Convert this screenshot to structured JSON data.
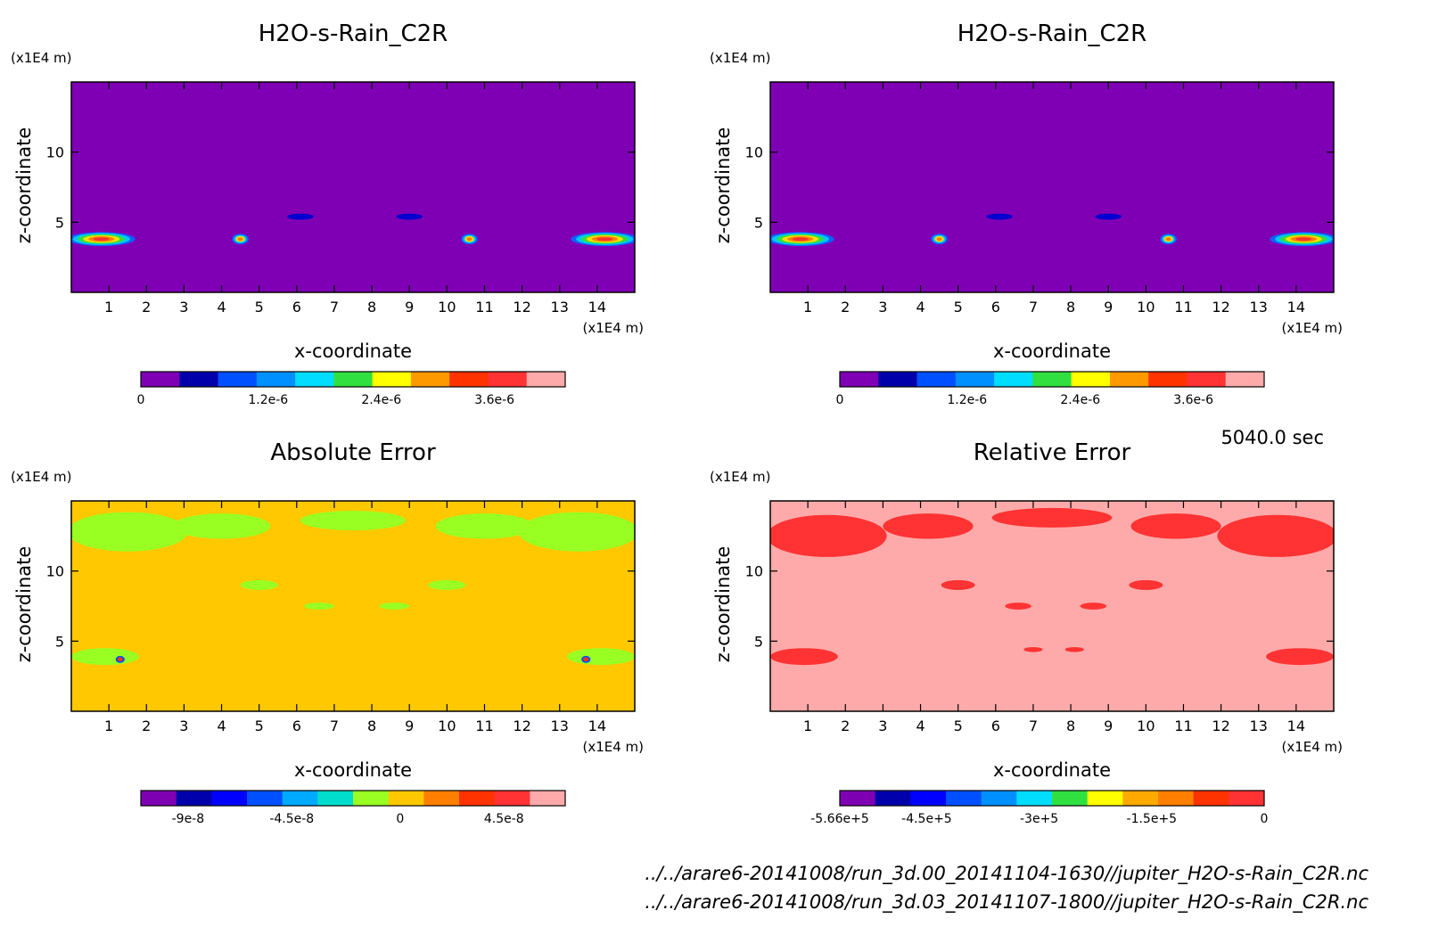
{
  "time_label": "5040.0 sec",
  "files": [
    "../../arare6-20141008/run_3d.00_20141104-1630//jupiter_H2O-s-Rain_C2R.nc",
    "../../arare6-20141008/run_3d.03_20141107-1800//jupiter_H2O-s-Rain_C2R.nc"
  ],
  "chart_data": [
    {
      "type": "heatmap",
      "title": "H2O-s-Rain_C2R",
      "xlabel": "x-coordinate",
      "ylabel": "z-coordinate",
      "x_unit": "(x1E4 m)",
      "y_unit": "(x1E4 m)",
      "xlim": [
        0,
        15
      ],
      "ylim": [
        0,
        15
      ],
      "x_ticks": [
        1,
        2,
        3,
        4,
        5,
        6,
        7,
        8,
        9,
        10,
        11,
        12,
        13,
        14
      ],
      "y_ticks": [
        5,
        10
      ],
      "background_color": "#7f00b4",
      "blobs": [
        {
          "x": 0.8,
          "z": 3.8,
          "rx": 0.9,
          "rz": 0.5,
          "levels": [
            "#1060ff",
            "#00c8ff",
            "#30e040",
            "#ffe000",
            "#ff8000",
            "#ff3030"
          ]
        },
        {
          "x": 14.2,
          "z": 3.8,
          "rx": 0.9,
          "rz": 0.5,
          "levels": [
            "#1060ff",
            "#00c8ff",
            "#30e040",
            "#ffe000",
            "#ff8000",
            "#ff3030"
          ]
        },
        {
          "x": 4.5,
          "z": 3.8,
          "rx": 0.22,
          "rz": 0.38,
          "levels": [
            "#1060ff",
            "#00c8ff",
            "#ffe000",
            "#ff8000"
          ]
        },
        {
          "x": 10.6,
          "z": 3.8,
          "rx": 0.22,
          "rz": 0.38,
          "levels": [
            "#1060ff",
            "#00c8ff",
            "#ffe000",
            "#ff8000"
          ]
        },
        {
          "x": 6.1,
          "z": 5.4,
          "rx": 0.35,
          "rz": 0.22,
          "levels": [
            "#0000d0"
          ]
        },
        {
          "x": 9.0,
          "z": 5.4,
          "rx": 0.35,
          "rz": 0.22,
          "levels": [
            "#0000d0"
          ]
        }
      ],
      "colorbar": {
        "colors": [
          "#7f00b4",
          "#0000aa",
          "#0050ff",
          "#0090ff",
          "#00ddff",
          "#30e040",
          "#ffff00",
          "#ff9900",
          "#ff3300",
          "#ff3333",
          "#ffaaaa"
        ],
        "labels": [
          {
            "pos": 0.0,
            "text": "0"
          },
          {
            "pos": 0.3,
            "text": "1.2e-6"
          },
          {
            "pos": 0.5667,
            "text": "2.4e-6"
          },
          {
            "pos": 0.8333,
            "text": "3.6e-6"
          }
        ]
      }
    },
    {
      "type": "heatmap",
      "title": "H2O-s-Rain_C2R",
      "xlabel": "x-coordinate",
      "ylabel": "z-coordinate",
      "x_unit": "(x1E4 m)",
      "y_unit": "(x1E4 m)",
      "xlim": [
        0,
        15
      ],
      "ylim": [
        0,
        15
      ],
      "x_ticks": [
        1,
        2,
        3,
        4,
        5,
        6,
        7,
        8,
        9,
        10,
        11,
        12,
        13,
        14
      ],
      "y_ticks": [
        5,
        10
      ],
      "background_color": "#7f00b4",
      "blobs": [
        {
          "x": 0.8,
          "z": 3.8,
          "rx": 0.9,
          "rz": 0.5,
          "levels": [
            "#1060ff",
            "#00c8ff",
            "#30e040",
            "#ffe000",
            "#ff8000",
            "#ff3030"
          ]
        },
        {
          "x": 14.2,
          "z": 3.8,
          "rx": 0.9,
          "rz": 0.5,
          "levels": [
            "#1060ff",
            "#00c8ff",
            "#30e040",
            "#ffe000",
            "#ff8000",
            "#ff3030"
          ]
        },
        {
          "x": 4.5,
          "z": 3.8,
          "rx": 0.22,
          "rz": 0.38,
          "levels": [
            "#1060ff",
            "#00c8ff",
            "#ffe000",
            "#ff8000"
          ]
        },
        {
          "x": 10.6,
          "z": 3.8,
          "rx": 0.22,
          "rz": 0.38,
          "levels": [
            "#1060ff",
            "#00c8ff",
            "#ffe000",
            "#ff8000"
          ]
        },
        {
          "x": 6.1,
          "z": 5.4,
          "rx": 0.35,
          "rz": 0.22,
          "levels": [
            "#0000d0"
          ]
        },
        {
          "x": 9.0,
          "z": 5.4,
          "rx": 0.35,
          "rz": 0.22,
          "levels": [
            "#0000d0"
          ]
        }
      ],
      "colorbar": {
        "colors": [
          "#7f00b4",
          "#0000aa",
          "#0050ff",
          "#0090ff",
          "#00ddff",
          "#30e040",
          "#ffff00",
          "#ff9900",
          "#ff3300",
          "#ff3333",
          "#ffaaaa"
        ],
        "labels": [
          {
            "pos": 0.0,
            "text": "0"
          },
          {
            "pos": 0.3,
            "text": "1.2e-6"
          },
          {
            "pos": 0.5667,
            "text": "2.4e-6"
          },
          {
            "pos": 0.8333,
            "text": "3.6e-6"
          }
        ]
      }
    },
    {
      "type": "heatmap",
      "title": "Absolute Error",
      "xlabel": "x-coordinate",
      "ylabel": "z-coordinate",
      "x_unit": "(x1E4 m)",
      "y_unit": "(x1E4 m)",
      "xlim": [
        0,
        15
      ],
      "ylim": [
        0,
        15
      ],
      "x_ticks": [
        1,
        2,
        3,
        4,
        5,
        6,
        7,
        8,
        9,
        10,
        11,
        12,
        13,
        14
      ],
      "y_ticks": [
        5,
        10
      ],
      "background_color": "#ffc800",
      "blobs": [
        {
          "x": 1.5,
          "z": 12.8,
          "rx": 1.6,
          "rz": 1.4,
          "levels": [
            "#99ff22"
          ]
        },
        {
          "x": 13.5,
          "z": 12.8,
          "rx": 1.6,
          "rz": 1.4,
          "levels": [
            "#99ff22"
          ]
        },
        {
          "x": 4.0,
          "z": 13.2,
          "rx": 1.3,
          "rz": 0.9,
          "levels": [
            "#99ff22"
          ]
        },
        {
          "x": 11.0,
          "z": 13.2,
          "rx": 1.3,
          "rz": 0.9,
          "levels": [
            "#99ff22"
          ]
        },
        {
          "x": 7.5,
          "z": 13.6,
          "rx": 1.4,
          "rz": 0.7,
          "levels": [
            "#99ff22"
          ]
        },
        {
          "x": 5.0,
          "z": 9.0,
          "rx": 0.5,
          "rz": 0.35,
          "levels": [
            "#99ff22"
          ]
        },
        {
          "x": 10.0,
          "z": 9.0,
          "rx": 0.5,
          "rz": 0.35,
          "levels": [
            "#99ff22"
          ]
        },
        {
          "x": 6.6,
          "z": 7.5,
          "rx": 0.4,
          "rz": 0.25,
          "levels": [
            "#99ff22"
          ]
        },
        {
          "x": 8.6,
          "z": 7.5,
          "rx": 0.4,
          "rz": 0.25,
          "levels": [
            "#99ff22"
          ]
        },
        {
          "x": 0.9,
          "z": 3.9,
          "rx": 0.9,
          "rz": 0.6,
          "levels": [
            "#99ff22"
          ]
        },
        {
          "x": 14.1,
          "z": 3.9,
          "rx": 0.9,
          "rz": 0.6,
          "levels": [
            "#99ff22"
          ]
        },
        {
          "x": 1.3,
          "z": 3.7,
          "rx": 0.12,
          "rz": 0.25,
          "levels": [
            "#0050ff",
            "#ff3300"
          ]
        },
        {
          "x": 13.7,
          "z": 3.7,
          "rx": 0.12,
          "rz": 0.25,
          "levels": [
            "#0050ff",
            "#ff3300"
          ]
        }
      ],
      "colorbar": {
        "colors": [
          "#7f00b4",
          "#0000aa",
          "#0000ff",
          "#0050ff",
          "#00aaff",
          "#00ddcc",
          "#99ff22",
          "#ffc800",
          "#ff8000",
          "#ff3300",
          "#ff3333",
          "#ffaaaa"
        ],
        "labels": [
          {
            "pos": 0.1111,
            "text": "-9e-8"
          },
          {
            "pos": 0.3556,
            "text": "-4.5e-8"
          },
          {
            "pos": 0.6111,
            "text": "0"
          },
          {
            "pos": 0.8556,
            "text": "4.5e-8"
          }
        ]
      }
    },
    {
      "type": "heatmap",
      "title": "Relative Error",
      "xlabel": "x-coordinate",
      "ylabel": "z-coordinate",
      "x_unit": "(x1E4 m)",
      "y_unit": "(x1E4 m)",
      "xlim": [
        0,
        15
      ],
      "ylim": [
        0,
        15
      ],
      "x_ticks": [
        1,
        2,
        3,
        4,
        5,
        6,
        7,
        8,
        9,
        10,
        11,
        12,
        13,
        14
      ],
      "y_ticks": [
        5,
        10
      ],
      "background_color": "#ffaaaa",
      "blobs": [
        {
          "x": 1.5,
          "z": 12.5,
          "rx": 1.6,
          "rz": 1.5,
          "levels": [
            "#ff3333"
          ]
        },
        {
          "x": 13.5,
          "z": 12.5,
          "rx": 1.6,
          "rz": 1.5,
          "levels": [
            "#ff3333"
          ]
        },
        {
          "x": 4.2,
          "z": 13.2,
          "rx": 1.2,
          "rz": 0.9,
          "levels": [
            "#ff3333"
          ]
        },
        {
          "x": 10.8,
          "z": 13.2,
          "rx": 1.2,
          "rz": 0.9,
          "levels": [
            "#ff3333"
          ]
        },
        {
          "x": 7.5,
          "z": 13.8,
          "rx": 1.6,
          "rz": 0.7,
          "levels": [
            "#ff3333"
          ]
        },
        {
          "x": 5.0,
          "z": 9.0,
          "rx": 0.45,
          "rz": 0.35,
          "levels": [
            "#ff3333"
          ]
        },
        {
          "x": 10.0,
          "z": 9.0,
          "rx": 0.45,
          "rz": 0.35,
          "levels": [
            "#ff3333"
          ]
        },
        {
          "x": 6.6,
          "z": 7.5,
          "rx": 0.35,
          "rz": 0.25,
          "levels": [
            "#ff3333"
          ]
        },
        {
          "x": 8.6,
          "z": 7.5,
          "rx": 0.35,
          "rz": 0.25,
          "levels": [
            "#ff3333"
          ]
        },
        {
          "x": 7.0,
          "z": 4.4,
          "rx": 0.25,
          "rz": 0.18,
          "levels": [
            "#ff3333"
          ]
        },
        {
          "x": 8.1,
          "z": 4.4,
          "rx": 0.25,
          "rz": 0.18,
          "levels": [
            "#ff3333"
          ]
        },
        {
          "x": 0.9,
          "z": 3.9,
          "rx": 0.9,
          "rz": 0.6,
          "levels": [
            "#ff3333"
          ]
        },
        {
          "x": 14.1,
          "z": 3.9,
          "rx": 0.9,
          "rz": 0.6,
          "levels": [
            "#ff3333"
          ]
        }
      ],
      "colorbar": {
        "colors": [
          "#7f00b4",
          "#0000aa",
          "#0000ff",
          "#0050ff",
          "#0090ff",
          "#00ddff",
          "#30e040",
          "#ffff00",
          "#ffaa00",
          "#ff8000",
          "#ff3300",
          "#ff3333"
        ],
        "labels": [
          {
            "pos": 0.0,
            "text": "-5.66e+5"
          },
          {
            "pos": 0.2047,
            "text": "-4.5e+5"
          },
          {
            "pos": 0.4698,
            "text": "-3e+5"
          },
          {
            "pos": 0.7349,
            "text": "-1.5e+5"
          },
          {
            "pos": 1.0,
            "text": "0"
          }
        ]
      }
    }
  ]
}
